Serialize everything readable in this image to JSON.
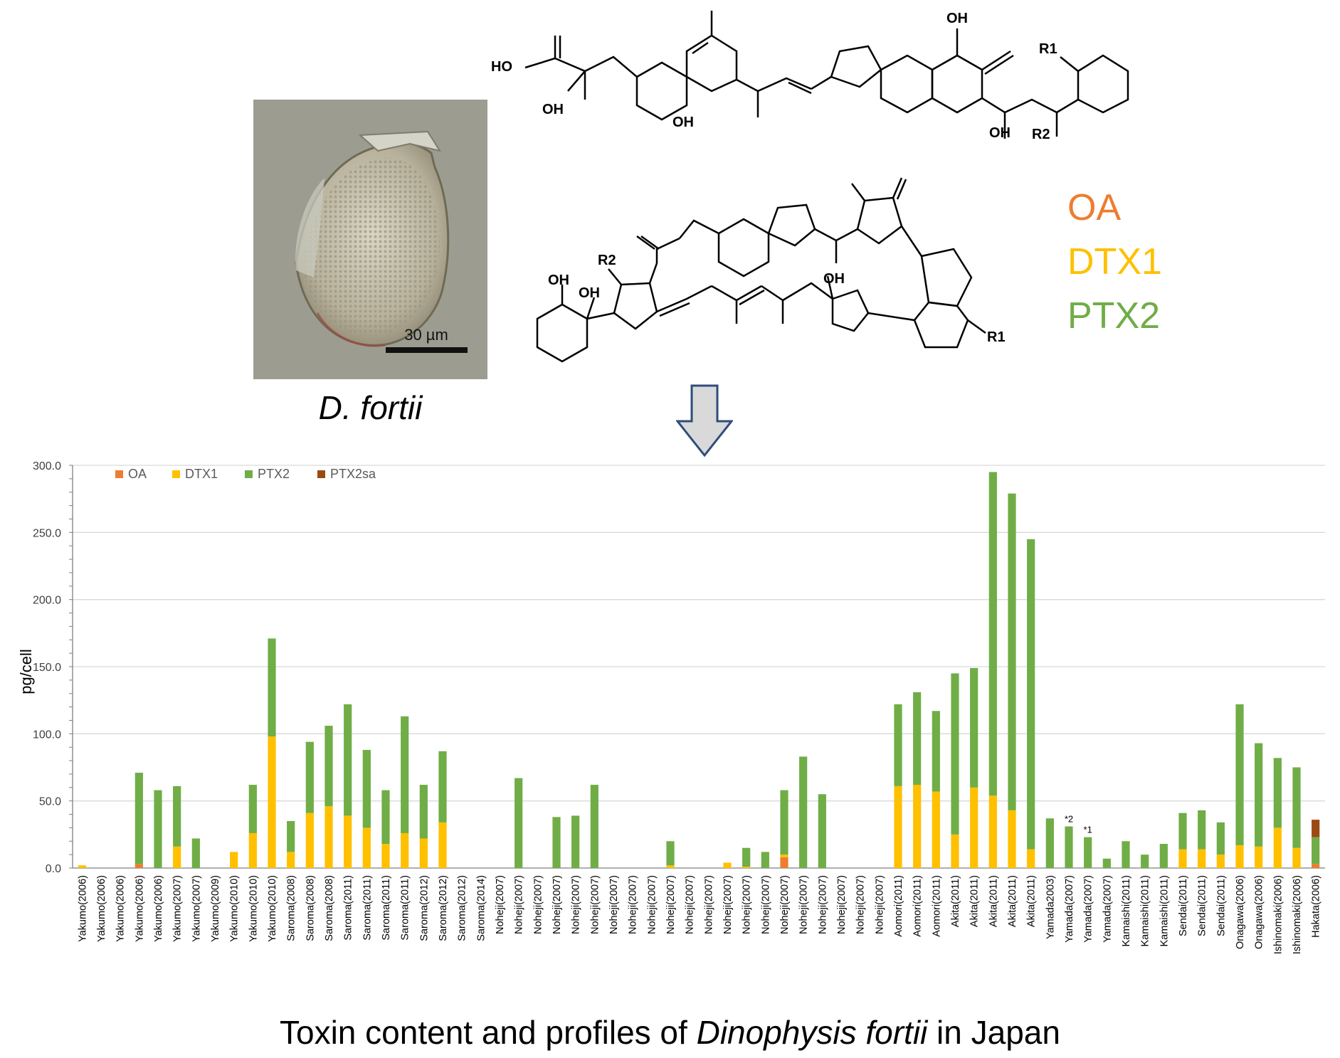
{
  "micrograph": {
    "scale_bar_label": "30 µm"
  },
  "species_caption": "D. fortii",
  "structures": {
    "top": {
      "labels": [
        "HO",
        "OH",
        "OH",
        "OH",
        "OH",
        "R1",
        "R2"
      ]
    },
    "bottom": {
      "labels": [
        "R2",
        "OH",
        "OH",
        "OH",
        "R1"
      ]
    }
  },
  "toxin_legend": {
    "OA": {
      "label": "OA",
      "color": "#ED7D31"
    },
    "DTX1": {
      "label": "DTX1",
      "color": "#FFC000"
    },
    "PTX2": {
      "label": "PTX2",
      "color": "#70AD47"
    }
  },
  "chart_data": {
    "type": "bar",
    "stacked": true,
    "ylabel": "pg/cell",
    "ylim": [
      0,
      300
    ],
    "yticks": [
      "0.0",
      "50.0",
      "100.0",
      "150.0",
      "200.0",
      "250.0",
      "300.0"
    ],
    "grid": true,
    "legend_position": "top-left",
    "categories": [
      "Yakumo(2006)",
      "Yakumo(2006)",
      "Yakumo(2006)",
      "Yakumo(2006)",
      "Yakumo(2006)",
      "Yakumo(2007)",
      "Yakumo(2007)",
      "Yakumo(2009)",
      "Yakumo(2010)",
      "Yakumo(2010)",
      "Yakumo(2010)",
      "Saroma(2008)",
      "Saroma(2008)",
      "Saroma(2008)",
      "Saroma(2011)",
      "Saroma(2011)",
      "Saroma(2011)",
      "Saroma(2011)",
      "Saroma(2012)",
      "Saroma(2012)",
      "Saroma(2012)",
      "Saroma(2014)",
      "Noheji(2007)",
      "Noheji(2007)",
      "Noheji(2007)",
      "Noheji(2007)",
      "Noheji(2007)",
      "Noheji(2007)",
      "Noheji(2007)",
      "Noheji(2007)",
      "Noheji(2007)",
      "Noheji(2007)",
      "Noheji(2007)",
      "Noheji(2007)",
      "Noheji(2007)",
      "Noheji(2007)",
      "Noheji(2007)",
      "Noheji(2007)",
      "Noheji(2007)",
      "Noheji(2007)",
      "Noheji(2007)",
      "Noheji(2007)",
      "Noheji(2007)",
      "Aomori(2011)",
      "Aomori(2011)",
      "Aomori(2011)",
      "Akita(2011)",
      "Akita(2011)",
      "Akita(2011)",
      "Akita(2011)",
      "Akita(2011)",
      "Yamada2003)",
      "Yamada(2007)",
      "Yamada(2007)",
      "Yamada(2007)",
      "Kamaishi(2011)",
      "Kamaishi(2011)",
      "Kamaishi(2011)",
      "Sendai(2011)",
      "Sendai(2011)",
      "Sendai(2011)",
      "Onagawa(2006)",
      "Onagawa(2006)",
      "Ishinomaki(2006)",
      "Ishinomaki(2006)",
      "Hakata(2006)"
    ],
    "series": [
      {
        "name": "OA",
        "color": "#ED7D31",
        "values": [
          0,
          0,
          0,
          3,
          0,
          0,
          0,
          0,
          0,
          0,
          0,
          0,
          0,
          0,
          0,
          0,
          0,
          0,
          0,
          0,
          0,
          0,
          0,
          0,
          0,
          0,
          0,
          0,
          0,
          0,
          0,
          0,
          0,
          0,
          0,
          0,
          0,
          8,
          0,
          0,
          0,
          0,
          0,
          0,
          0,
          0,
          0,
          0,
          0,
          0,
          0,
          0,
          0,
          0,
          0,
          0,
          0,
          0,
          0,
          0,
          0,
          0,
          0,
          0,
          0,
          3
        ]
      },
      {
        "name": "DTX1",
        "color": "#FFC000",
        "values": [
          2,
          0,
          0,
          0,
          0,
          16,
          0,
          0,
          12,
          26,
          98,
          12,
          41,
          46,
          39,
          30,
          18,
          26,
          22,
          34,
          0,
          0,
          0,
          0,
          0,
          0,
          0,
          0,
          0,
          0,
          0,
          2,
          0,
          0,
          4,
          1,
          0,
          2,
          0,
          0,
          0,
          0,
          0,
          61,
          62,
          57,
          25,
          60,
          54,
          43,
          14,
          0,
          0,
          0,
          0,
          0,
          0,
          0,
          14,
          14,
          10,
          17,
          16,
          30,
          15,
          0
        ]
      },
      {
        "name": "PTX2",
        "color": "#70AD47",
        "values": [
          0,
          0,
          0,
          68,
          58,
          45,
          22,
          0,
          0,
          36,
          73,
          23,
          53,
          60,
          83,
          58,
          40,
          87,
          40,
          53,
          0,
          0,
          0,
          67,
          0,
          38,
          39,
          62,
          0,
          0,
          0,
          18,
          0,
          0,
          0,
          14,
          12,
          48,
          83,
          55,
          0,
          0,
          0,
          61,
          69,
          60,
          120,
          89,
          241,
          236,
          231,
          37,
          31,
          23,
          7,
          20,
          10,
          18,
          27,
          29,
          24,
          105,
          77,
          52,
          60,
          20
        ]
      },
      {
        "name": "PTX2sa",
        "color": "#9C4A14",
        "values": [
          0,
          0,
          0,
          0,
          0,
          0,
          0,
          0,
          0,
          0,
          0,
          0,
          0,
          0,
          0,
          0,
          0,
          0,
          0,
          0,
          0,
          0,
          0,
          0,
          0,
          0,
          0,
          0,
          0,
          0,
          0,
          0,
          0,
          0,
          0,
          0,
          0,
          0,
          0,
          0,
          0,
          0,
          0,
          0,
          0,
          0,
          0,
          0,
          0,
          0,
          0,
          0,
          0,
          0,
          0,
          0,
          0,
          0,
          0,
          0,
          0,
          0,
          0,
          0,
          0,
          13
        ]
      }
    ],
    "annotations": [
      {
        "category_index": 52,
        "text": "*2"
      },
      {
        "category_index": 53,
        "text": "*1"
      }
    ]
  },
  "footer": {
    "title_pre": "Toxin content and profiles of ",
    "title_italic": "Dinophysis fortii",
    "title_post": " in Japan"
  }
}
